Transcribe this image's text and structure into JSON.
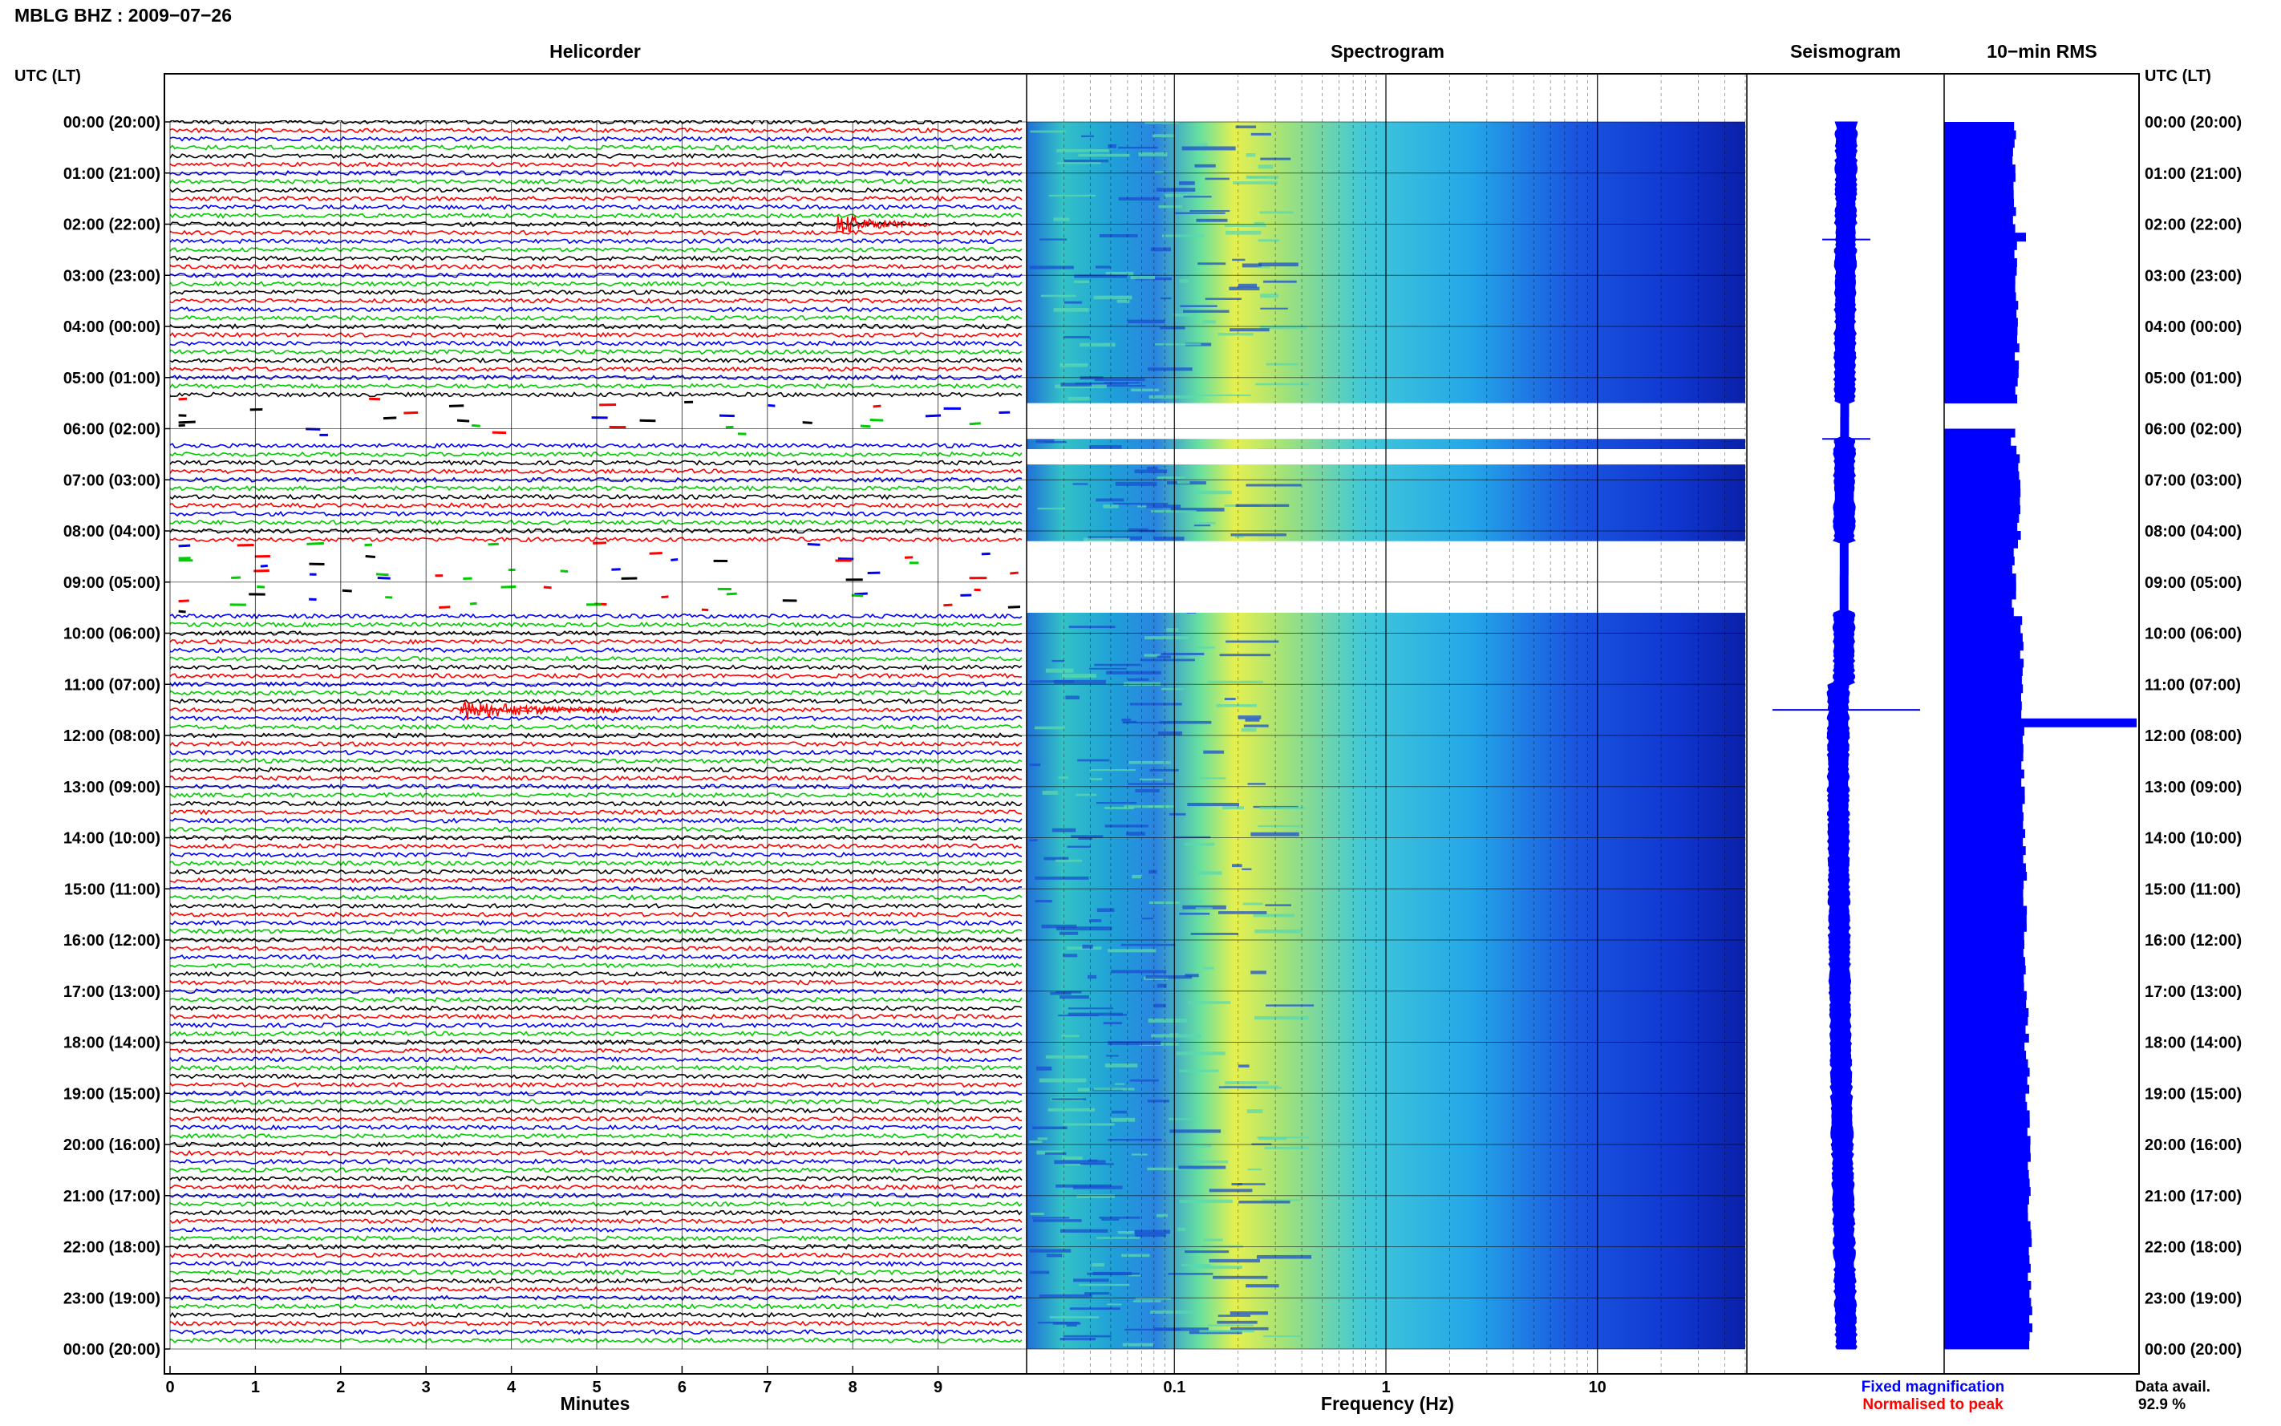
{
  "title": "MBLG BHZ : 2009−07−26",
  "time_label_left": "UTC (LT)",
  "time_label_right": "UTC (LT)",
  "panels": {
    "helicorder": "Helicorder",
    "spectrogram": "Spectrogram",
    "seismogram": "Seismogram",
    "rms": "10−min RMS"
  },
  "legend": {
    "fixed": "Fixed magnification",
    "fixed_color": "#0000ff",
    "normalised": "Normalised to peak",
    "normalised_color": "#ff0000"
  },
  "data_avail": {
    "label": "Data avail.",
    "value": "92.9 %"
  },
  "trace_colors": [
    "#000000",
    "#ff0000",
    "#0000ff",
    "#00cc00"
  ],
  "chart_data": [
    {
      "type": "line",
      "name": "Helicorder",
      "xlabel": "Minutes",
      "xlim": [
        0,
        10
      ],
      "x_ticks": [
        "0",
        "1",
        "2",
        "3",
        "4",
        "5",
        "6",
        "7",
        "8",
        "9"
      ],
      "y_ticks": [
        "00:00 (20:00)",
        "01:00 (21:00)",
        "02:00 (22:00)",
        "03:00 (23:00)",
        "04:00 (00:00)",
        "05:00 (01:00)",
        "06:00 (02:00)",
        "07:00 (03:00)",
        "08:00 (04:00)",
        "09:00 (05:00)",
        "10:00 (06:00)",
        "11:00 (07:00)",
        "12:00 (08:00)",
        "13:00 (09:00)",
        "14:00 (10:00)",
        "15:00 (11:00)",
        "16:00 (12:00)",
        "17:00 (13:00)",
        "18:00 (14:00)",
        "19:00 (15:00)",
        "20:00 (16:00)",
        "21:00 (17:00)",
        "22:00 (18:00)",
        "23:00 (19:00)",
        "00:00 (20:00)"
      ],
      "line_minutes": 10,
      "lines": 144,
      "gap_hours": [
        [
          5.5,
          6.2
        ],
        [
          8.2,
          9.6
        ]
      ],
      "events": [
        {
          "hour": 2.0,
          "minute_start": 7.8,
          "minute_end": 8.9
        },
        {
          "hour": 11.5,
          "minute_start": 3.4,
          "minute_end": 5.3
        }
      ]
    },
    {
      "type": "heatmap",
      "name": "Spectrogram",
      "xlabel": "Frequency (Hz)",
      "x_scale": "log",
      "xlim": [
        0.02,
        50
      ],
      "x_ticks": [
        "0.1",
        "1",
        "10"
      ],
      "gap_hours": [
        [
          5.5,
          6.2
        ],
        [
          6.4,
          6.7
        ],
        [
          8.2,
          9.6
        ]
      ]
    },
    {
      "type": "line",
      "name": "Seismogram",
      "spikes_hours": [
        2.3,
        6.2,
        11.5
      ]
    },
    {
      "type": "bar",
      "name": "10−min RMS",
      "orientation": "horizontal",
      "high_hours": [
        2.2,
        11.6
      ]
    }
  ]
}
